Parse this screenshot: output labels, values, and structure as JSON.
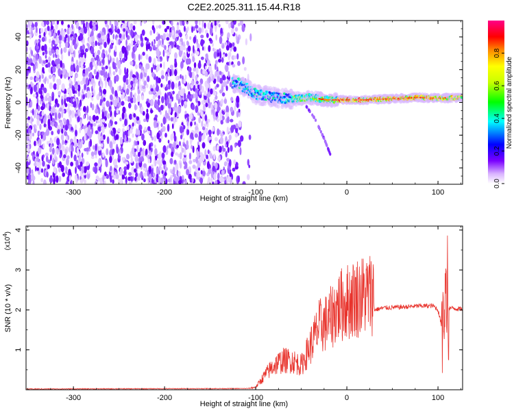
{
  "title": "C2E2.2025.311.15.44.R18",
  "chart_data": [
    {
      "type": "heatmap",
      "xlabel": "Height of straight line (km)",
      "ylabel": "Frequency (Hz)",
      "xlim": [
        -352,
        127
      ],
      "ylim": [
        -50,
        50
      ],
      "xticks": [
        -300,
        -200,
        -100,
        0,
        100
      ],
      "yticks": [
        -40,
        -20,
        0,
        20,
        40
      ],
      "xtick_labels": [
        "-300",
        "-200",
        "-100",
        "0",
        "100"
      ],
      "ytick_labels": [
        "-40",
        "-20",
        "0",
        "20",
        "40"
      ],
      "colorbar": {
        "label": "Normalized spectral amplitude",
        "range": [
          0,
          1
        ],
        "ticks": [
          0.0,
          0.2,
          0.4,
          0.6,
          0.8
        ],
        "tick_labels": [
          "0.0",
          "0.2",
          "0.4",
          "0.6",
          "0.8"
        ]
      },
      "features": {
        "noise_region_x": [
          -352,
          -110
        ],
        "ridge": [
          [
            -120,
            12
          ],
          [
            -100,
            5
          ],
          [
            -80,
            3
          ],
          [
            -60,
            2
          ],
          [
            -40,
            3
          ],
          [
            -20,
            1.5
          ],
          [
            0,
            1.5
          ],
          [
            20,
            1.5
          ],
          [
            40,
            2
          ],
          [
            60,
            2.5
          ],
          [
            80,
            3
          ],
          [
            100,
            2.5
          ],
          [
            127,
            3
          ]
        ],
        "branch": [
          [
            -45,
            -2
          ],
          [
            -35,
            -10
          ],
          [
            -25,
            -22
          ],
          [
            -18,
            -32
          ]
        ]
      }
    },
    {
      "type": "line",
      "xlabel": "Height of straight line (km)",
      "ylabel": "SNR (10 * v/v)",
      "exponent_label": "(x10",
      "exponent_value": "4",
      "exponent_close": ")",
      "xlim": [
        -352,
        127
      ],
      "ylim": [
        0,
        4.1
      ],
      "xticks": [
        -300,
        -200,
        -100,
        0,
        100
      ],
      "yticks": [
        1,
        2,
        3,
        4
      ],
      "xtick_labels": [
        "-300",
        "-200",
        "-100",
        "0",
        "100"
      ],
      "ytick_labels": [
        "1",
        "2",
        "3",
        "4"
      ],
      "series": [
        {
          "color": "#e8332c",
          "envelope": [
            [
              -352,
              0.02
            ],
            [
              -110,
              0.03
            ],
            [
              -100,
              0.05
            ],
            [
              -90,
              0.3
            ],
            [
              -80,
              0.5
            ],
            [
              -70,
              0.6
            ],
            [
              -60,
              0.6
            ],
            [
              -50,
              0.5
            ],
            [
              -40,
              0.9
            ],
            [
              -30,
              1.3
            ],
            [
              -20,
              1.4
            ],
            [
              -10,
              1.7
            ],
            [
              0,
              1.8
            ],
            [
              10,
              1.9
            ],
            [
              20,
              1.95
            ],
            [
              30,
              2.0
            ],
            [
              40,
              2.05
            ],
            [
              60,
              2.07
            ],
            [
              80,
              2.1
            ],
            [
              95,
              2.1
            ],
            [
              100,
              2.0
            ],
            [
              105,
              1.5
            ],
            [
              108,
              2.2
            ],
            [
              112,
              2.05
            ],
            [
              127,
              2.02
            ]
          ]
        }
      ]
    }
  ]
}
